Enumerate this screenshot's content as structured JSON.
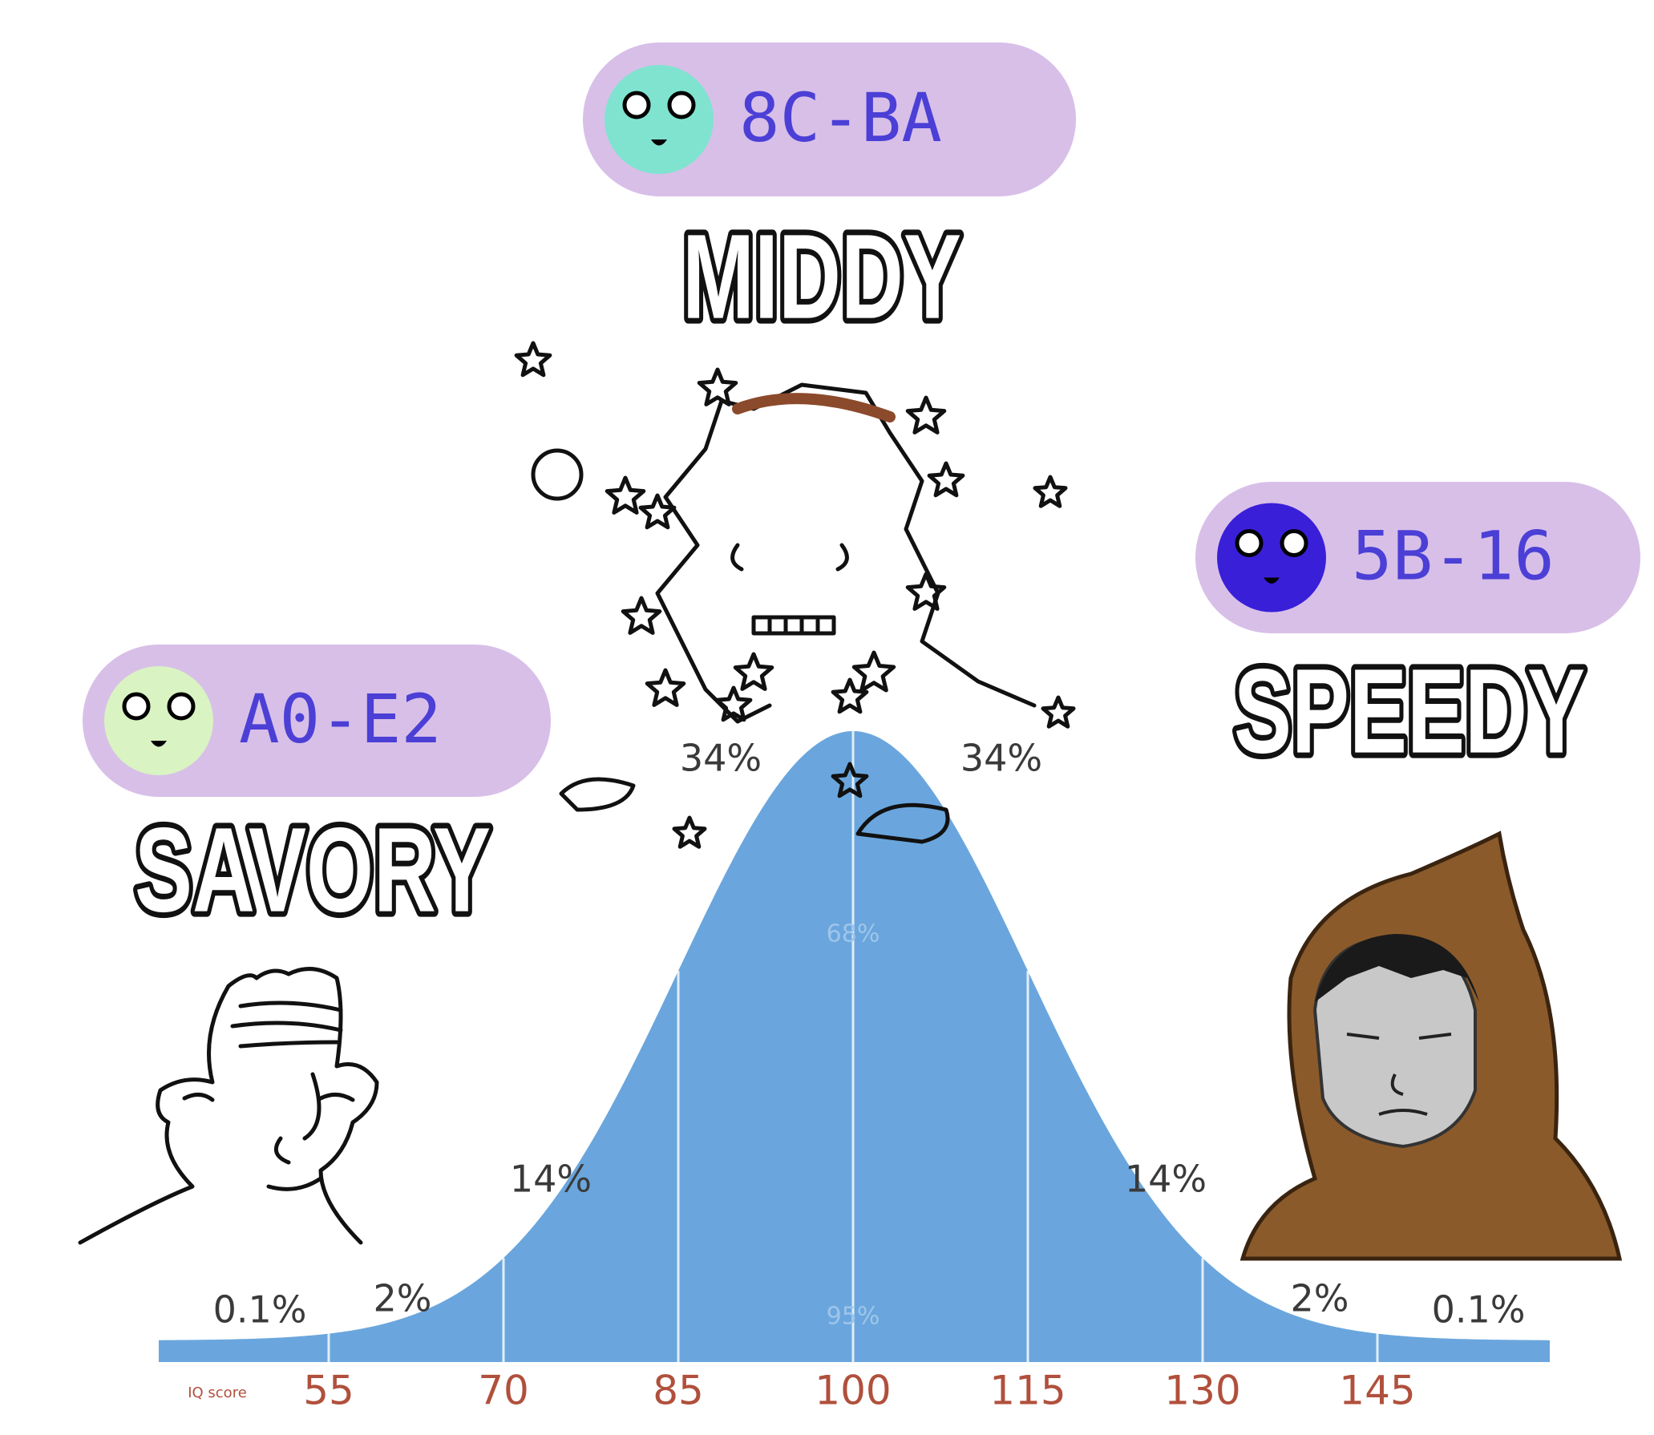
{
  "characters": [
    {
      "code": "8C-BA",
      "name": "MIDDY"
    },
    {
      "code": "5B-16",
      "name": "SPEEDY"
    },
    {
      "code": "A0-E2",
      "name": "SAVORY"
    }
  ],
  "curve_labels": [
    "34%",
    "34%",
    "68%",
    "14%",
    "14%",
    "2%",
    "2%",
    "0.1%",
    "0.1%",
    "95%"
  ],
  "axis": {
    "title": "IQ score",
    "ticks": [
      "55",
      "70",
      "85",
      "100",
      "115",
      "130",
      "145"
    ]
  }
}
